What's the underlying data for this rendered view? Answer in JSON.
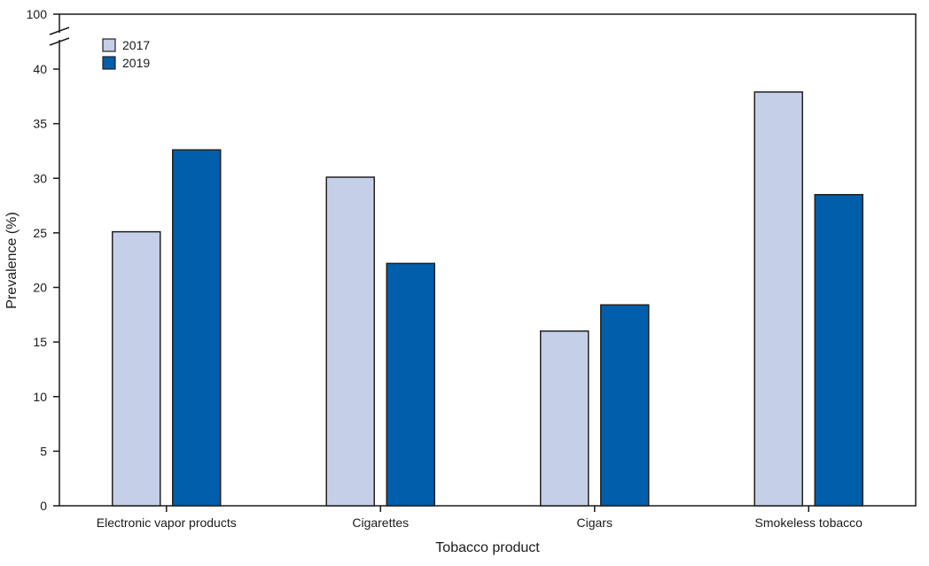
{
  "chart_data": {
    "type": "bar",
    "categories": [
      "Electronic vapor products",
      "Cigarettes",
      "Cigars",
      "Smokeless tobacco"
    ],
    "series": [
      {
        "name": "2017",
        "values": [
          25.1,
          30.1,
          16.0,
          37.9
        ],
        "color": "#c5cfe8"
      },
      {
        "name": "2019",
        "values": [
          32.6,
          22.2,
          18.4,
          28.5
        ],
        "color": "#005eaa"
      }
    ],
    "xlabel": "Tobacco product",
    "ylabel": "Prevalence (%)",
    "ylim": [
      0,
      40
    ],
    "yticks": [
      0,
      5,
      10,
      15,
      20,
      25,
      30,
      35,
      40
    ],
    "ytick_break_label": "100",
    "axis_break": true,
    "grid": false,
    "legend_position": "top-left",
    "bar_outline_color": "#222222"
  }
}
